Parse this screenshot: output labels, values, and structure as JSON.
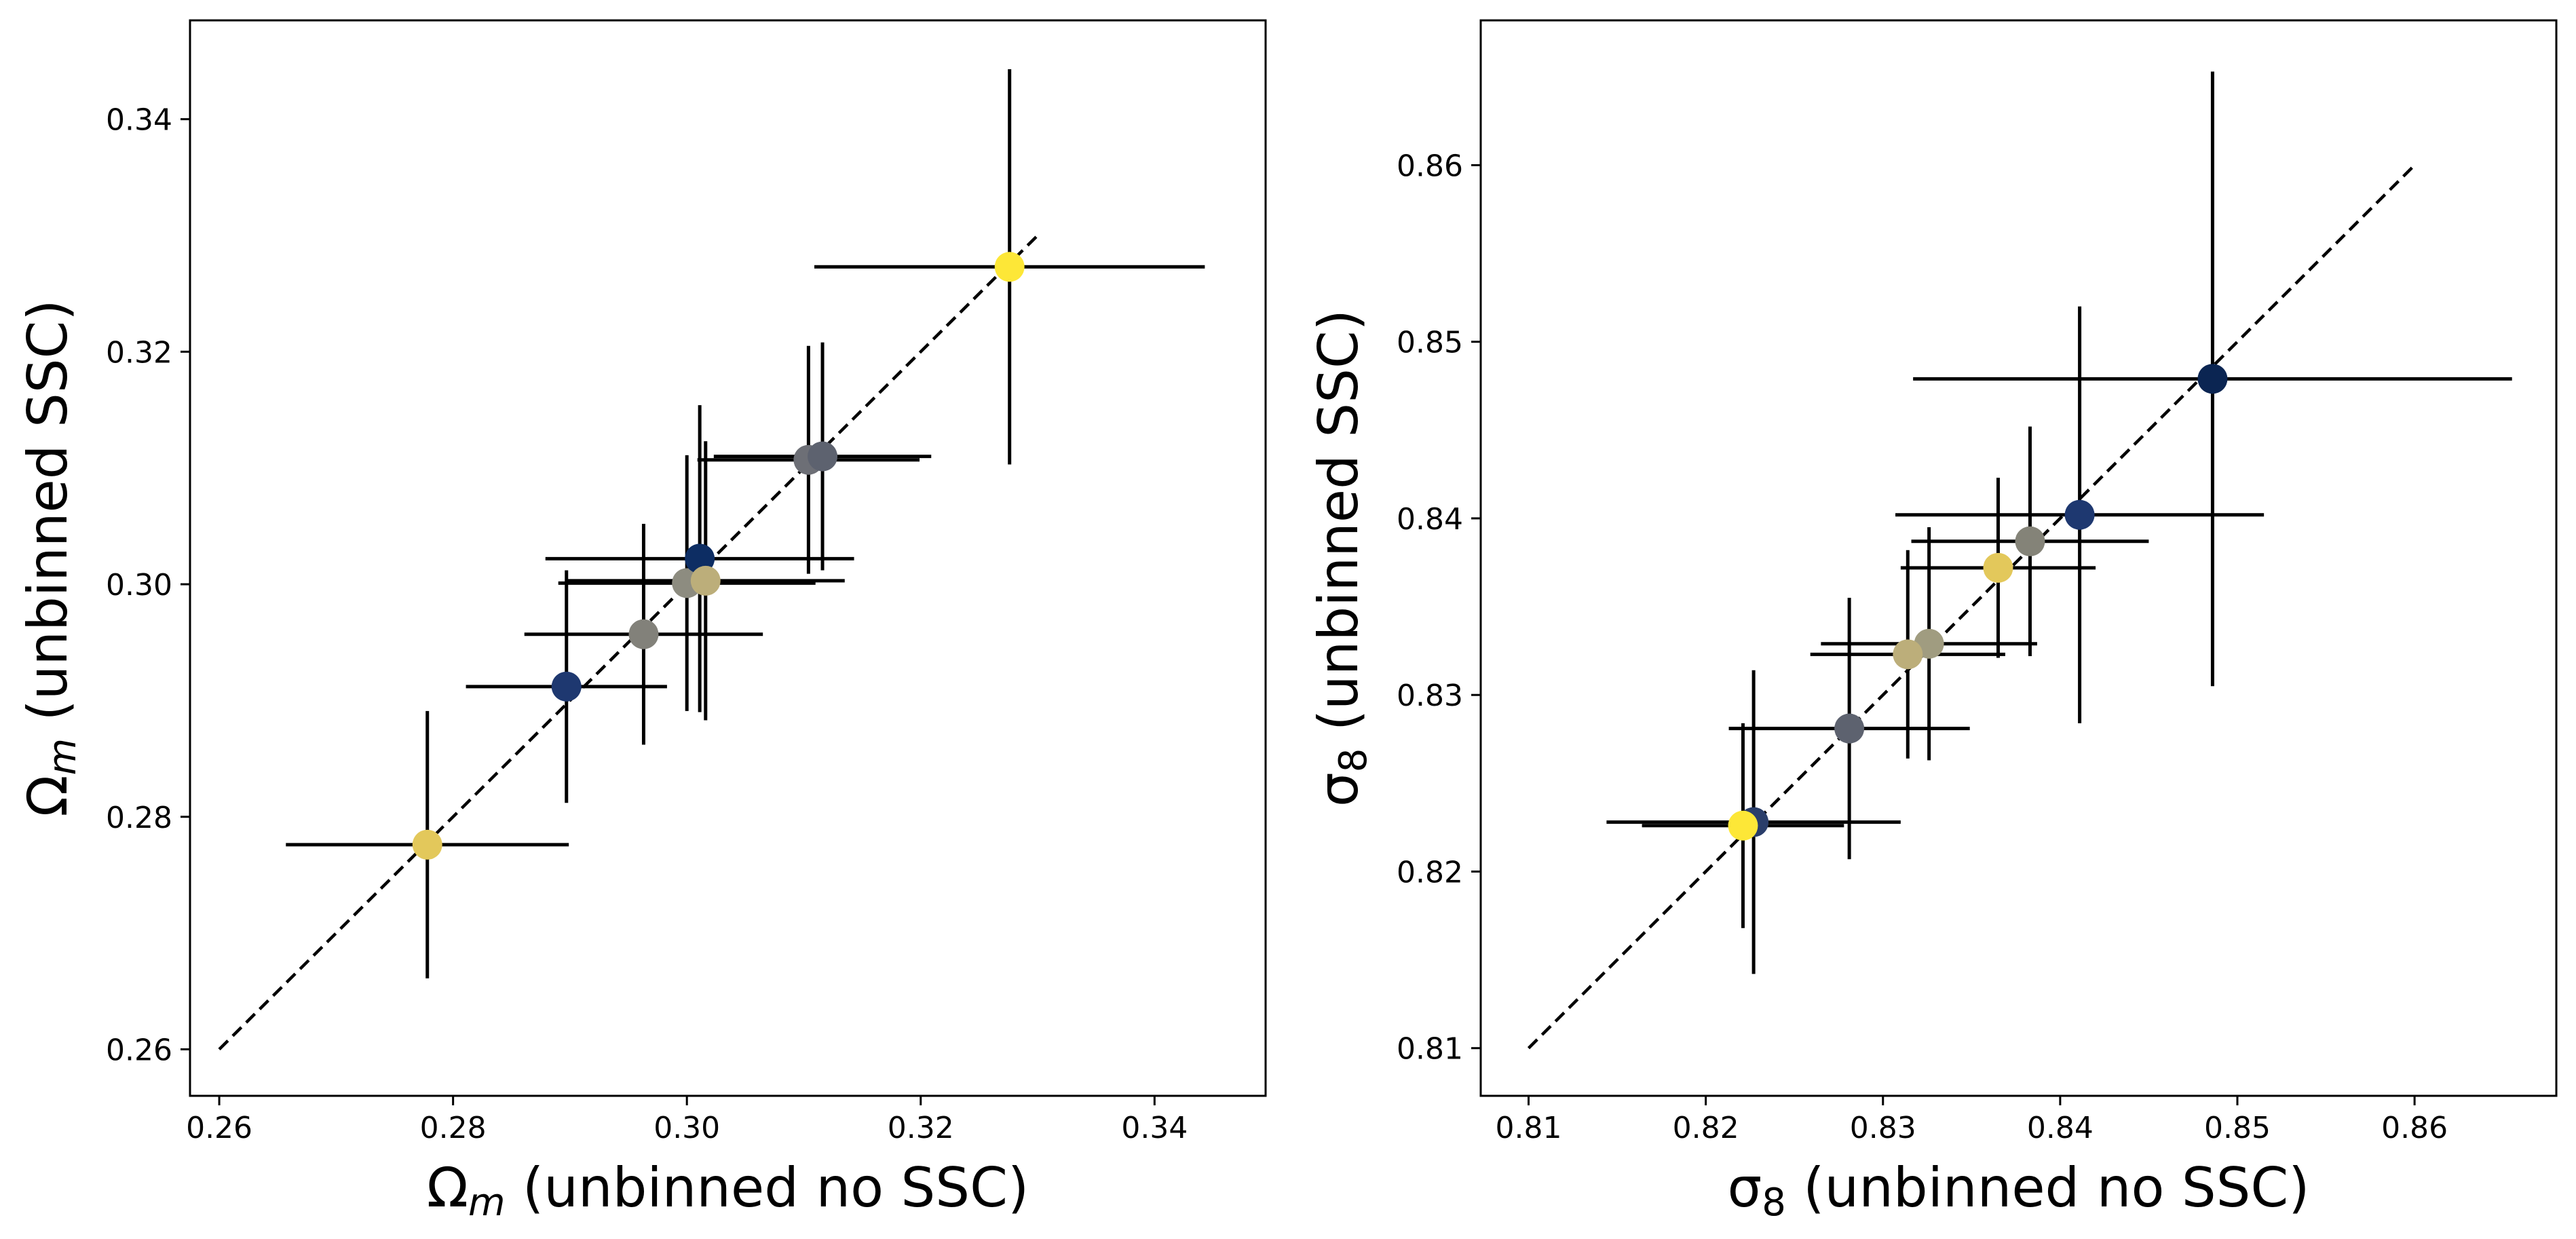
{
  "chart_data": [
    {
      "type": "scatter",
      "title": "",
      "xlabel": "Ω_m (unbinned no SSC)",
      "ylabel": "Ω_m (unbinned SSC)",
      "xlabel_parts": {
        "symbol": "Ω",
        "sub": "m",
        "rest": " (unbinned no SSC)"
      },
      "ylabel_parts": {
        "symbol": "Ω",
        "sub": "m",
        "rest": " (unbinned SSC)"
      },
      "xlim": [
        0.2575,
        0.3495
      ],
      "ylim": [
        0.256,
        0.3485
      ],
      "xticks": [
        0.26,
        0.28,
        0.3,
        0.32,
        0.34
      ],
      "yticks": [
        0.26,
        0.28,
        0.3,
        0.32,
        0.34
      ],
      "xtick_labels": [
        "0.26",
        "0.28",
        "0.30",
        "0.32",
        "0.34"
      ],
      "ytick_labels": [
        "0.26",
        "0.28",
        "0.30",
        "0.32",
        "0.34"
      ],
      "diagonal": [
        0.26,
        0.33
      ],
      "grid": false,
      "points": [
        {
          "x": 0.2778,
          "y": 0.2776,
          "xerr": 0.0121,
          "yerr": 0.0115,
          "color": "#e3c85b"
        },
        {
          "x": 0.2897,
          "y": 0.2912,
          "xerr": 0.0086,
          "yerr": 0.01,
          "color": "#1e3870"
        },
        {
          "x": 0.2963,
          "y": 0.2957,
          "xerr": 0.0102,
          "yerr": 0.0095,
          "color": "#82817a"
        },
        {
          "x": 0.3,
          "y": 0.3001,
          "xerr": 0.011,
          "yerr": 0.011,
          "color": "#8d8c80"
        },
        {
          "x": 0.3011,
          "y": 0.3022,
          "xerr": 0.0132,
          "yerr": 0.0132,
          "color": "#0d2d63"
        },
        {
          "x": 0.3016,
          "y": 0.3003,
          "xerr": 0.0119,
          "yerr": 0.012,
          "color": "#bcae7a"
        },
        {
          "x": 0.3104,
          "y": 0.3107,
          "xerr": 0.0095,
          "yerr": 0.0098,
          "color": "#6d6f76"
        },
        {
          "x": 0.3116,
          "y": 0.311,
          "xerr": 0.0093,
          "yerr": 0.0098,
          "color": "#5d626f"
        },
        {
          "x": 0.3276,
          "y": 0.3273,
          "xerr": 0.0167,
          "yerr": 0.017,
          "color": "#fde737"
        }
      ]
    },
    {
      "type": "scatter",
      "title": "",
      "xlabel": "σ_8 (unbinned no SSC)",
      "ylabel": "σ_8 (unbinned SSC)",
      "xlabel_parts": {
        "symbol": "σ",
        "sub": "8",
        "rest": " (unbinned no SSC)"
      },
      "ylabel_parts": {
        "symbol": "σ",
        "sub": "8",
        "rest": " (unbinned SSC)"
      },
      "xlim": [
        0.8073,
        0.868
      ],
      "ylim": [
        0.8073,
        0.8682
      ],
      "xticks": [
        0.81,
        0.82,
        0.83,
        0.84,
        0.85,
        0.86
      ],
      "yticks": [
        0.81,
        0.82,
        0.83,
        0.84,
        0.85,
        0.86
      ],
      "xtick_labels": [
        "0.81",
        "0.82",
        "0.83",
        "0.84",
        "0.85",
        "0.86"
      ],
      "ytick_labels": [
        "0.81",
        "0.82",
        "0.83",
        "0.84",
        "0.85",
        "0.86"
      ],
      "diagonal": [
        0.81,
        0.86
      ],
      "grid": false,
      "points": [
        {
          "x": 0.8486,
          "y": 0.8479,
          "xerr": 0.0169,
          "yerr": 0.0174,
          "color": "#0b2552"
        },
        {
          "x": 0.8411,
          "y": 0.8402,
          "xerr": 0.0104,
          "yerr": 0.0118,
          "color": "#1e3870"
        },
        {
          "x": 0.8383,
          "y": 0.8387,
          "xerr": 0.0067,
          "yerr": 0.0065,
          "color": "#848378"
        },
        {
          "x": 0.8365,
          "y": 0.8372,
          "xerr": 0.0055,
          "yerr": 0.0051,
          "color": "#e3c85b"
        },
        {
          "x": 0.8326,
          "y": 0.8329,
          "xerr": 0.0061,
          "yerr": 0.0066,
          "color": "#a09c80"
        },
        {
          "x": 0.8314,
          "y": 0.8323,
          "xerr": 0.0055,
          "yerr": 0.0059,
          "color": "#bcae7a"
        },
        {
          "x": 0.8281,
          "y": 0.8281,
          "xerr": 0.0068,
          "yerr": 0.0074,
          "color": "#5d626f"
        },
        {
          "x": 0.8227,
          "y": 0.8228,
          "xerr": 0.0083,
          "yerr": 0.0086,
          "color": "#2a3e6a"
        },
        {
          "x": 0.8221,
          "y": 0.8226,
          "xerr": 0.0057,
          "yerr": 0.0058,
          "color": "#fde737"
        }
      ]
    }
  ]
}
